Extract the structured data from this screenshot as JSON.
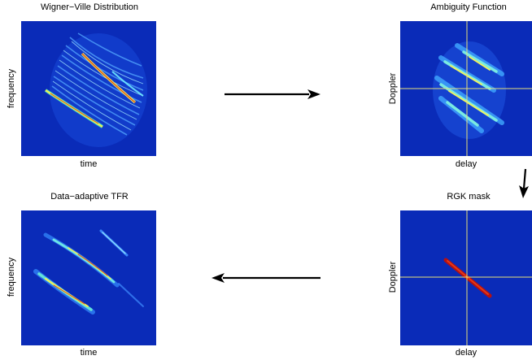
{
  "panels": {
    "wvd": {
      "title": "Wigner−Ville Distribution",
      "xlabel": "time",
      "ylabel": "frequency"
    },
    "af": {
      "title": "Ambiguity Function",
      "xlabel": "delay",
      "ylabel": "Doppler"
    },
    "rgk": {
      "title": "RGK mask",
      "xlabel": "delay",
      "ylabel": "Doppler"
    },
    "tfr": {
      "title": "Data−adaptive TFR",
      "xlabel": "time",
      "ylabel": "frequency"
    }
  },
  "colors": {
    "background": "#0a2bb8",
    "axis_line": "#e8e07a",
    "arrow": "#000000"
  }
}
